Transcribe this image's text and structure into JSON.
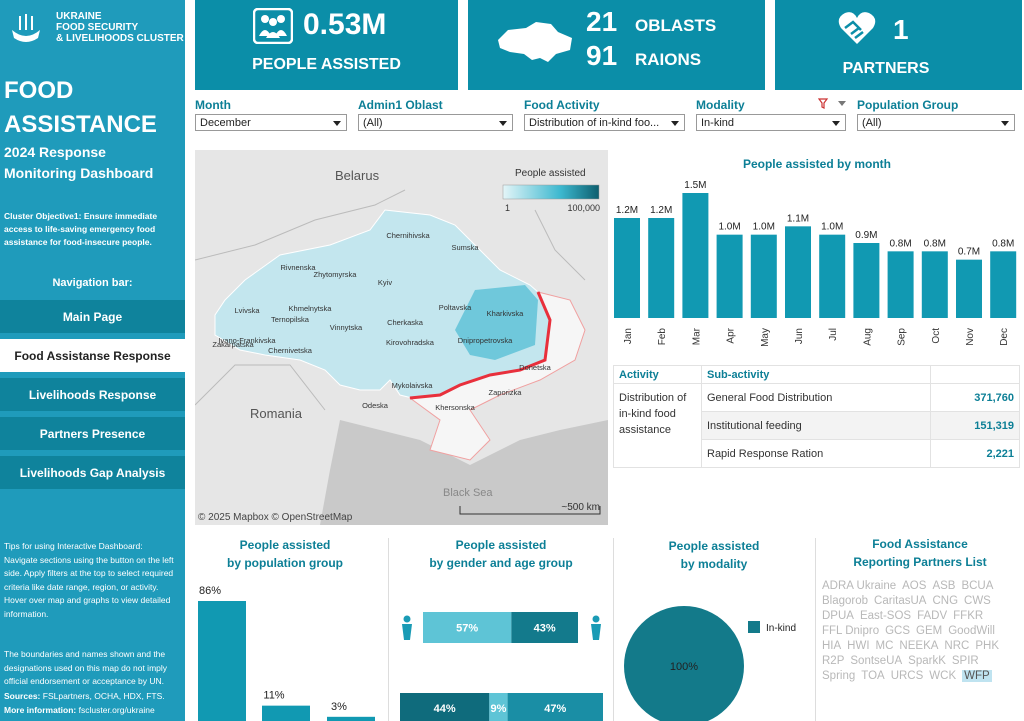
{
  "sidebar": {
    "logo": [
      "UKRAINE",
      "FOOD SECURITY",
      "& LIVELIHOODS CLUSTER"
    ],
    "title": "FOOD ASSISTANCE",
    "subtitle": "2024 Response Monitoring Dashboard",
    "objective": "Cluster Objective1:  Ensure immediate access to life-saving emergency food assistance for food-insecure people.",
    "nav_title": "Navigation bar:",
    "nav": [
      "Main Page",
      "Food Assistanse Response",
      "Livelihoods Response",
      "Partners Presence",
      "Livelihoods Gap Analysis"
    ],
    "tips": "Tips for using Interactive Dashboard: Navigate sections using the button on the left side. Apply filters at the top to select required criteria like date range, region, or activity. Hover over map and graphs to view detailed information.",
    "disclaimer": "The boundaries and names shown and the designations used on this map do not imply official endorsement or acceptance by UN.",
    "sources_label": "Sources:",
    "sources": "FSLpartners, OCHA, HDX, FTS.",
    "more_label": "More information:",
    "more": "fscluster.org/ukraine"
  },
  "kpi_people": {
    "value": "0.53M",
    "label": "PEOPLE ASSISTED"
  },
  "kpi_geo": {
    "oblasts_value": 21,
    "oblasts_label": "OBLASTS",
    "raions_value": 91,
    "raions_label": "RAIONS"
  },
  "kpi_partners": {
    "value": 1,
    "label": "PARTNERS"
  },
  "filters": [
    {
      "label": "Month",
      "value": "December"
    },
    {
      "label": "Admin1 Oblast",
      "value": "(All)"
    },
    {
      "label": "Food Activity",
      "value": "Distribution of in-kind foo..."
    },
    {
      "label": "Modality",
      "value": "In-kind"
    },
    {
      "label": "Population Group",
      "value": "(All)"
    }
  ],
  "map": {
    "legend_title": "People assisted",
    "legend_min": "1",
    "legend_max": "100,000",
    "countries": [
      "Belarus",
      "Romania"
    ],
    "sea": "Black Sea",
    "oblasts": [
      "Chernihivska",
      "Sumska",
      "Rivnenska",
      "Zhytomyrska",
      "Kyiv",
      "Lvivska",
      "Khmelnytska",
      "Ternopilska",
      "Vinnytska",
      "Cherkaska",
      "Poltavska",
      "Kharkivska",
      "Kirovohradska",
      "Dnipropetrovska",
      "Ivano-Frankivska",
      "Zakarpatska",
      "Chernivetska",
      "Donetska",
      "Mykolaivska",
      "Zaporizka",
      "Odeska",
      "Khersonska"
    ],
    "attribution": "© 2025 Mapbox  © OpenStreetMap",
    "scale": "~500 km"
  },
  "table": {
    "headers": [
      "Activity",
      "Sub-activity",
      ""
    ],
    "activity": "Distribution of in-kind food assistance",
    "rows": [
      [
        "General Food Distribution",
        "371,760"
      ],
      [
        "Institutional feeding",
        "151,319"
      ],
      [
        "Rapid Response Ration",
        "2,221"
      ]
    ]
  },
  "partners": {
    "title": "Food Assistance",
    "subtitle": "Reporting Partners List",
    "names": [
      "ADRA Ukraine",
      "AOS",
      "ASB",
      "BCUA",
      "Blagorob",
      "CaritasUA",
      "CNG",
      "CWS",
      "DPUA",
      "East-SOS",
      "FADV",
      "FFKR",
      "FFL Dnipro",
      "GCS",
      "GEM",
      "GoodWill",
      "HIA",
      "HWI",
      "MC",
      "NEEKA",
      "NRC",
      "PHK",
      "R2P",
      "SontseUA",
      "SparkK",
      "SPIR",
      "Spring",
      "TOA",
      "URCS",
      "WCK",
      "WFP"
    ],
    "highlight": "WFP"
  },
  "chart_data": [
    {
      "type": "bar",
      "title": "People assisted by month",
      "categories": [
        "Jan",
        "Feb",
        "Mar",
        "Apr",
        "May",
        "Jun",
        "Jul",
        "Aug",
        "Sep",
        "Oct",
        "Nov",
        "Dec"
      ],
      "values": [
        1.2,
        1.2,
        1.5,
        1.0,
        1.0,
        1.1,
        1.0,
        0.9,
        0.8,
        0.8,
        0.7,
        0.8
      ],
      "value_labels": [
        "1.2M",
        "1.2M",
        "1.5M",
        "1.0M",
        "1.0M",
        "1.1M",
        "1.0M",
        "0.9M",
        "0.8M",
        "0.8M",
        "0.7M",
        "0.8M"
      ],
      "color": "#1199b2"
    },
    {
      "type": "bar",
      "title": "People assisted",
      "subtitle": "by population group",
      "values": [
        86,
        11,
        3
      ],
      "value_labels": [
        "86%",
        "11%",
        "3%"
      ],
      "color": "#1199b2"
    },
    {
      "type": "stacked_bar",
      "title": "People assisted",
      "subtitle": "by gender and age group",
      "bars": [
        {
          "values": [
            57,
            43
          ],
          "value_labels": [
            "57%",
            "43%"
          ],
          "colors": [
            "#5ec4d6",
            "#137a8c"
          ]
        },
        {
          "values": [
            44,
            9,
            47
          ],
          "value_labels": [
            "44%",
            "9%",
            "47%"
          ],
          "colors": [
            "#0f6b7c",
            "#5ec4d6",
            "#1a8ea5"
          ]
        }
      ]
    },
    {
      "type": "pie",
      "title": "People assisted",
      "subtitle": "by modality",
      "categories": [
        "In-kind"
      ],
      "values": [
        100
      ],
      "value_labels": [
        "100%"
      ],
      "colors": [
        "#137a8a"
      ]
    }
  ]
}
